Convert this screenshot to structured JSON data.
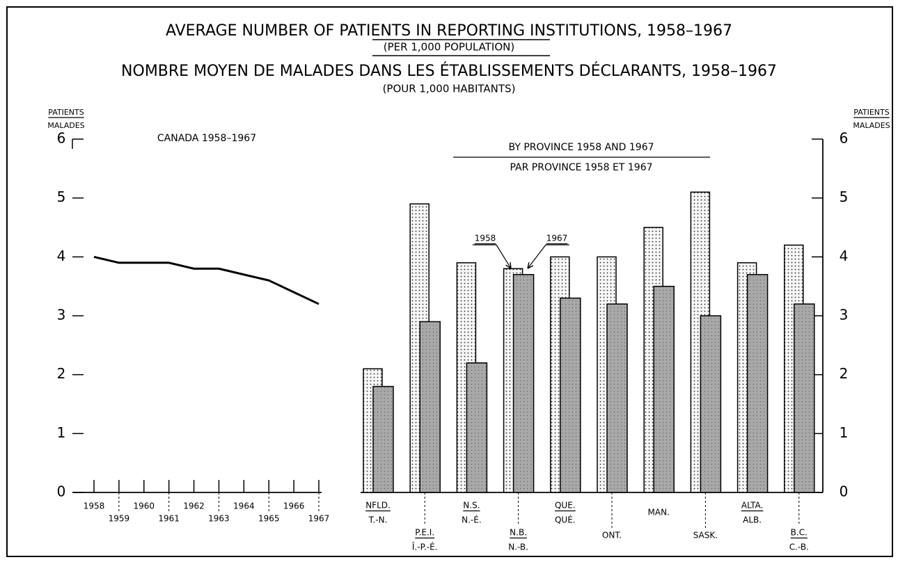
{
  "header": {
    "title": "AVERAGE NUMBER OF PATIENTS IN REPORTING INSTITUTIONS, 1958–1967",
    "subtitle": "(PER 1,000 POPULATION)",
    "title_fr": "NOMBRE MOYEN DE MALADES DANS LES ÉTABLISSEMENTS DÉCLARANTS, 1958–1967",
    "subtitle_fr": "(POUR 1,000 HABITANTS)"
  },
  "chart_data": [
    {
      "type": "line",
      "title": "CANADA 1958–1967",
      "ylabel": "PATIENTS",
      "ylabel_fr": "MALADES",
      "x": [
        1958,
        1959,
        1960,
        1961,
        1962,
        1963,
        1964,
        1965,
        1966,
        1967
      ],
      "series": [
        {
          "name": "Canada",
          "color": "#000000",
          "values": [
            4.0,
            3.9,
            3.9,
            3.9,
            3.8,
            3.8,
            3.7,
            3.6,
            3.4,
            3.2
          ]
        }
      ],
      "xlim": [
        1958,
        1967
      ],
      "xticks": [
        1958,
        1959,
        1960,
        1961,
        1962,
        1963,
        1964,
        1965,
        1966,
        1967
      ],
      "ylim": [
        0,
        6
      ],
      "yticks": [
        0,
        1,
        2,
        3,
        4,
        5,
        6
      ]
    },
    {
      "type": "bar",
      "title": "BY PROVINCE 1958 AND 1967",
      "title_fr": "PAR PROVINCE 1958 ET 1967",
      "ylabel": "PATIENTS",
      "ylabel_fr": "MALADES",
      "categories": [
        "NFLD.",
        "P.E.I.",
        "N.S.",
        "N.B.",
        "QUE.",
        "ONT.",
        "MAN.",
        "SASK.",
        "ALTA.",
        "B.C."
      ],
      "categories_fr": [
        "T.-N.",
        "Î.-P.-É.",
        "N.-É.",
        "N.-B.",
        "QUÉ.",
        null,
        null,
        null,
        "ALB.",
        "C.-B."
      ],
      "series": [
        {
          "name": "1958",
          "color": "#f6f6f6",
          "values": [
            2.1,
            4.9,
            3.9,
            3.8,
            4.0,
            4.0,
            4.5,
            5.1,
            3.9,
            4.2
          ]
        },
        {
          "name": "1967",
          "color": "#a8a8a8",
          "values": [
            1.8,
            2.9,
            2.2,
            3.7,
            3.3,
            3.2,
            3.5,
            3.0,
            3.7,
            3.2
          ]
        }
      ],
      "ylim": [
        0,
        6
      ],
      "yticks": [
        0,
        1,
        2,
        3,
        4,
        5,
        6
      ]
    }
  ]
}
